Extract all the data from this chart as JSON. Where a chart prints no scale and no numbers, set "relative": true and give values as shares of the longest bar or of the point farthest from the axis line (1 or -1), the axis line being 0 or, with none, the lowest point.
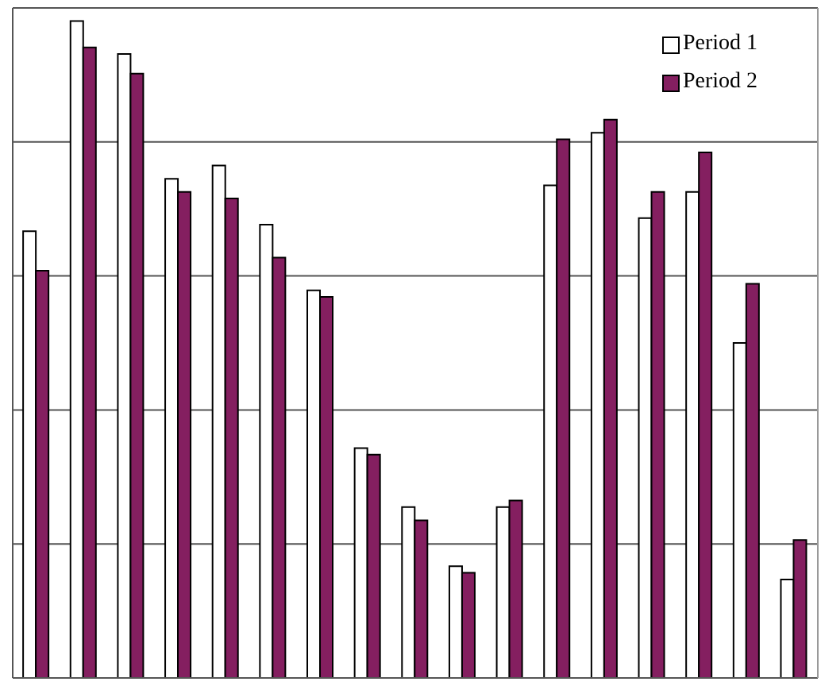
{
  "chart_data": {
    "type": "bar",
    "relative": true,
    "categories": [
      null,
      null,
      null,
      null,
      null,
      null,
      null,
      null,
      null,
      null,
      null,
      null,
      null,
      null,
      null,
      null,
      null
    ],
    "series": [
      {
        "name": "Period 1",
        "color": "#ffffff",
        "values": [
          0.68,
          1,
          0.95,
          0.76,
          0.78,
          0.69,
          0.59,
          0.35,
          0.26,
          0.17,
          0.26,
          0.75,
          0.83,
          0.7,
          0.74,
          0.51,
          0.15
        ]
      },
      {
        "name": "Period 2",
        "color": "#841f60",
        "values": [
          0.62,
          0.96,
          0.92,
          0.74,
          0.73,
          0.64,
          0.58,
          0.34,
          0.24,
          0.16,
          0.27,
          0.82,
          0.85,
          0.74,
          0.8,
          0.6,
          0.21
        ]
      }
    ],
    "grid": "y",
    "legend": "top right",
    "tick_labels": false
  }
}
